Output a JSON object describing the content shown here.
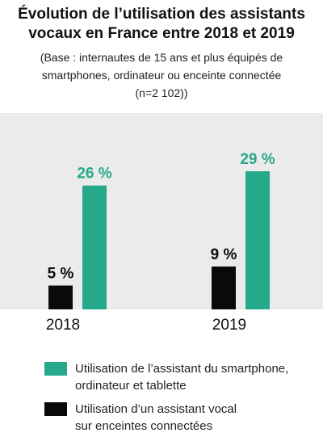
{
  "title_lines": [
    "Évolution de l’utilisation des assistants",
    "vocaux en France entre 2018 et 2019"
  ],
  "subtitle_lines": [
    "(Base : internautes de 15 ans et plus équipés de",
    "smartphones, ordinateur ou enceinte connectée",
    "(n=2 102))"
  ],
  "colors": {
    "green": "#26a88a",
    "black": "#0a0a0a",
    "plot_bg": "#ebebeb"
  },
  "chart_data": {
    "type": "bar",
    "categories": [
      "2018",
      "2019"
    ],
    "series": [
      {
        "name": "Utilisation d’un assistant vocal sur enceintes connectées",
        "values": [
          5,
          9
        ],
        "labels": [
          "5 %",
          "9 %"
        ],
        "color": "#0a0a0a"
      },
      {
        "name": "Utilisation de l’assistant du smartphone, ordinateur et tablette",
        "values": [
          26,
          29
        ],
        "labels": [
          "26 %",
          "29 %"
        ],
        "color": "#26a88a"
      }
    ],
    "ylim": [
      0,
      35
    ]
  },
  "legend": [
    {
      "lines": [
        "Utilisation de l’assistant du smartphone,",
        "ordinateur et tablette"
      ],
      "color": "#26a88a"
    },
    {
      "lines": [
        "Utilisation d’un assistant vocal",
        "sur enceintes connectées"
      ],
      "color": "#0a0a0a"
    }
  ]
}
